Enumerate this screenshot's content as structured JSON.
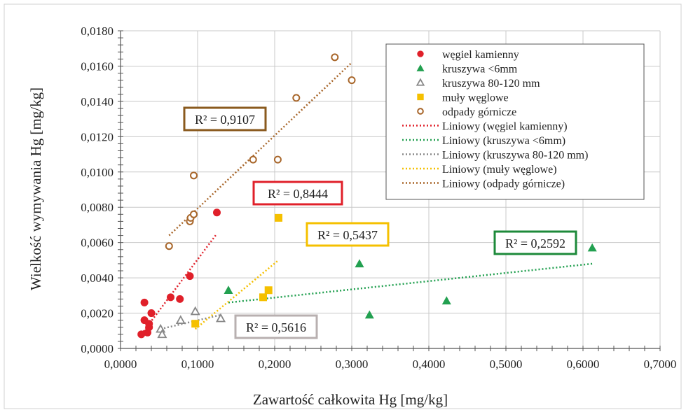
{
  "chart_data": {
    "type": "scatter",
    "xlabel": "Zawartość całkowita Hg [mg/kg]",
    "ylabel": "Wielkość wymywania Hg [mg/kg]",
    "xlim": [
      0,
      0.7
    ],
    "ylim": [
      0,
      0.018
    ],
    "x_ticks": [
      "0,0000",
      "0,1000",
      "0,2000",
      "0,3000",
      "0,4000",
      "0,5000",
      "0,6000",
      "0,7000"
    ],
    "y_ticks": [
      "0,0000",
      "0,0020",
      "0,0040",
      "0,0060",
      "0,0080",
      "0,0100",
      "0,0120",
      "0,0140",
      "0,0160",
      "0,0180"
    ],
    "grid": "major",
    "legend_position": "top-right",
    "series": [
      {
        "name": "węgiel kamienny",
        "marker": "circle-filled",
        "color": "#e0202a",
        "points": [
          [
            0.027,
            0.0008
          ],
          [
            0.031,
            0.0016
          ],
          [
            0.031,
            0.0026
          ],
          [
            0.035,
            0.0009
          ],
          [
            0.037,
            0.0012
          ],
          [
            0.037,
            0.0014
          ],
          [
            0.04,
            0.002
          ],
          [
            0.065,
            0.0029
          ],
          [
            0.077,
            0.0028
          ],
          [
            0.09,
            0.0041
          ],
          [
            0.125,
            0.0077
          ]
        ],
        "trend": {
          "name": "Liniowy (węgiel kamienny)",
          "x": [
            0.027,
            0.125
          ],
          "y": [
            0.0008,
            0.0065
          ],
          "r2_label": "R² = 0,8444",
          "box_color": "#e0202a"
        }
      },
      {
        "name": "kruszywa <6mm",
        "marker": "triangle-filled",
        "color": "#22a050",
        "points": [
          [
            0.14,
            0.0033
          ],
          [
            0.31,
            0.0048
          ],
          [
            0.323,
            0.0019
          ],
          [
            0.423,
            0.0027
          ],
          [
            0.612,
            0.0057
          ]
        ],
        "trend": {
          "name": "Liniowy (kruszywa <6mm)",
          "x": [
            0.14,
            0.612
          ],
          "y": [
            0.0026,
            0.0048
          ],
          "r2_label": "R² = 0,2592",
          "box_color": "#1d8a3a"
        }
      },
      {
        "name": "kruszywa 80-120 mm",
        "marker": "triangle-open",
        "color": "#888888",
        "points": [
          [
            0.052,
            0.0011
          ],
          [
            0.054,
            0.0008
          ],
          [
            0.078,
            0.0016
          ],
          [
            0.097,
            0.0021
          ],
          [
            0.13,
            0.0017
          ]
        ],
        "trend": {
          "name": "Liniowy (kruszywa 80-120 mm)",
          "x": [
            0.052,
            0.13
          ],
          "y": [
            0.0011,
            0.0019
          ],
          "r2_label": "R² = 0,5616",
          "box_color": "#b8b0b0"
        }
      },
      {
        "name": "muły węglowe",
        "marker": "square-filled",
        "color": "#f5c000",
        "points": [
          [
            0.097,
            0.0014
          ],
          [
            0.185,
            0.0029
          ],
          [
            0.192,
            0.0033
          ],
          [
            0.205,
            0.0074
          ]
        ],
        "trend": {
          "name": "Liniowy (muły węglowe)",
          "x": [
            0.097,
            0.205
          ],
          "y": [
            0.0011,
            0.005
          ],
          "r2_label": "R² = 0,5437",
          "box_color": "#f5c000"
        }
      },
      {
        "name": "odpady górnicze",
        "marker": "circle-open",
        "color": "#a8662a",
        "points": [
          [
            0.063,
            0.0058
          ],
          [
            0.09,
            0.0072
          ],
          [
            0.091,
            0.0074
          ],
          [
            0.095,
            0.0076
          ],
          [
            0.095,
            0.0098
          ],
          [
            0.172,
            0.0107
          ],
          [
            0.204,
            0.0107
          ],
          [
            0.228,
            0.0142
          ],
          [
            0.278,
            0.0165
          ],
          [
            0.3,
            0.0152
          ]
        ],
        "trend": {
          "name": "Liniowy (odpady górnicze)",
          "x": [
            0.063,
            0.3
          ],
          "y": [
            0.0064,
            0.0162
          ],
          "r2_label": "R² = 0,9107",
          "box_color": "#8a5a1e"
        }
      }
    ]
  }
}
